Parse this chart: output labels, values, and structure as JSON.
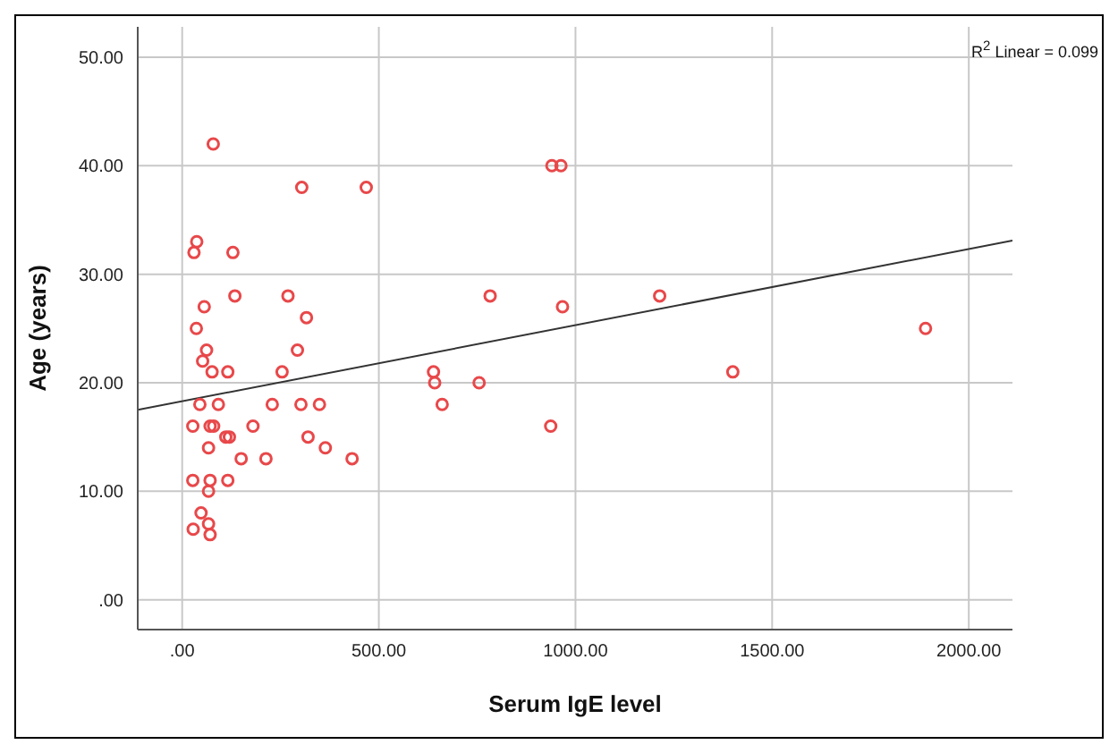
{
  "chart_data": {
    "type": "scatter",
    "xlabel": "Serum IgE level",
    "ylabel": "Age (years)",
    "annotations": [
      "R$^{2}$ Linear = 0.099"
    ],
    "xlim": [
      -113,
      2111
    ],
    "ylim": [
      -2.75,
      52.8
    ],
    "xticks": [
      {
        "value": 0,
        "label": ".00"
      },
      {
        "value": 500,
        "label": "500.00"
      },
      {
        "value": 1000,
        "label": "1000.00"
      },
      {
        "value": 1500,
        "label": "1500.00"
      },
      {
        "value": 2000,
        "label": "2000.00"
      }
    ],
    "yticks": [
      {
        "value": 0,
        "label": ".00"
      },
      {
        "value": 10,
        "label": "10.00"
      },
      {
        "value": 20,
        "label": "20.00"
      },
      {
        "value": 30,
        "label": "30.00"
      },
      {
        "value": 40,
        "label": "40.00"
      },
      {
        "value": 50,
        "label": "50.00"
      }
    ],
    "grid": true,
    "series": [
      {
        "marker": "circle",
        "color": "#e8484a",
        "x": [
          79,
          304,
          468,
          37,
          30,
          129,
          134,
          269,
          56,
          316,
          36,
          62,
          293,
          52,
          76,
          116,
          254,
          45,
          92,
          229,
          302,
          349,
          27,
          71,
          80,
          180,
          111,
          120,
          320,
          67,
          364,
          150,
          213,
          432,
          27,
          71,
          116,
          67,
          48,
          67,
          28,
          71,
          940,
          963,
          783,
          967,
          639,
          642,
          755,
          661,
          937,
          1214,
          1400,
          1890
        ],
        "values": [
          42,
          38,
          38,
          33,
          32,
          32,
          28,
          28,
          27,
          26,
          25,
          23,
          23,
          22,
          21,
          21,
          21,
          18,
          18,
          18,
          18,
          18,
          16,
          16,
          16,
          16,
          15,
          15,
          15,
          14,
          14,
          13,
          13,
          13,
          11,
          11,
          11,
          10,
          8,
          7,
          6.5,
          6,
          40,
          40,
          28,
          27,
          21,
          20,
          20,
          18,
          16,
          28,
          21,
          25
        ]
      },
      {
        "type": "line",
        "color": "#333333",
        "x": [
          -113,
          2111
        ],
        "values": [
          17.5,
          33.1
        ]
      }
    ]
  }
}
